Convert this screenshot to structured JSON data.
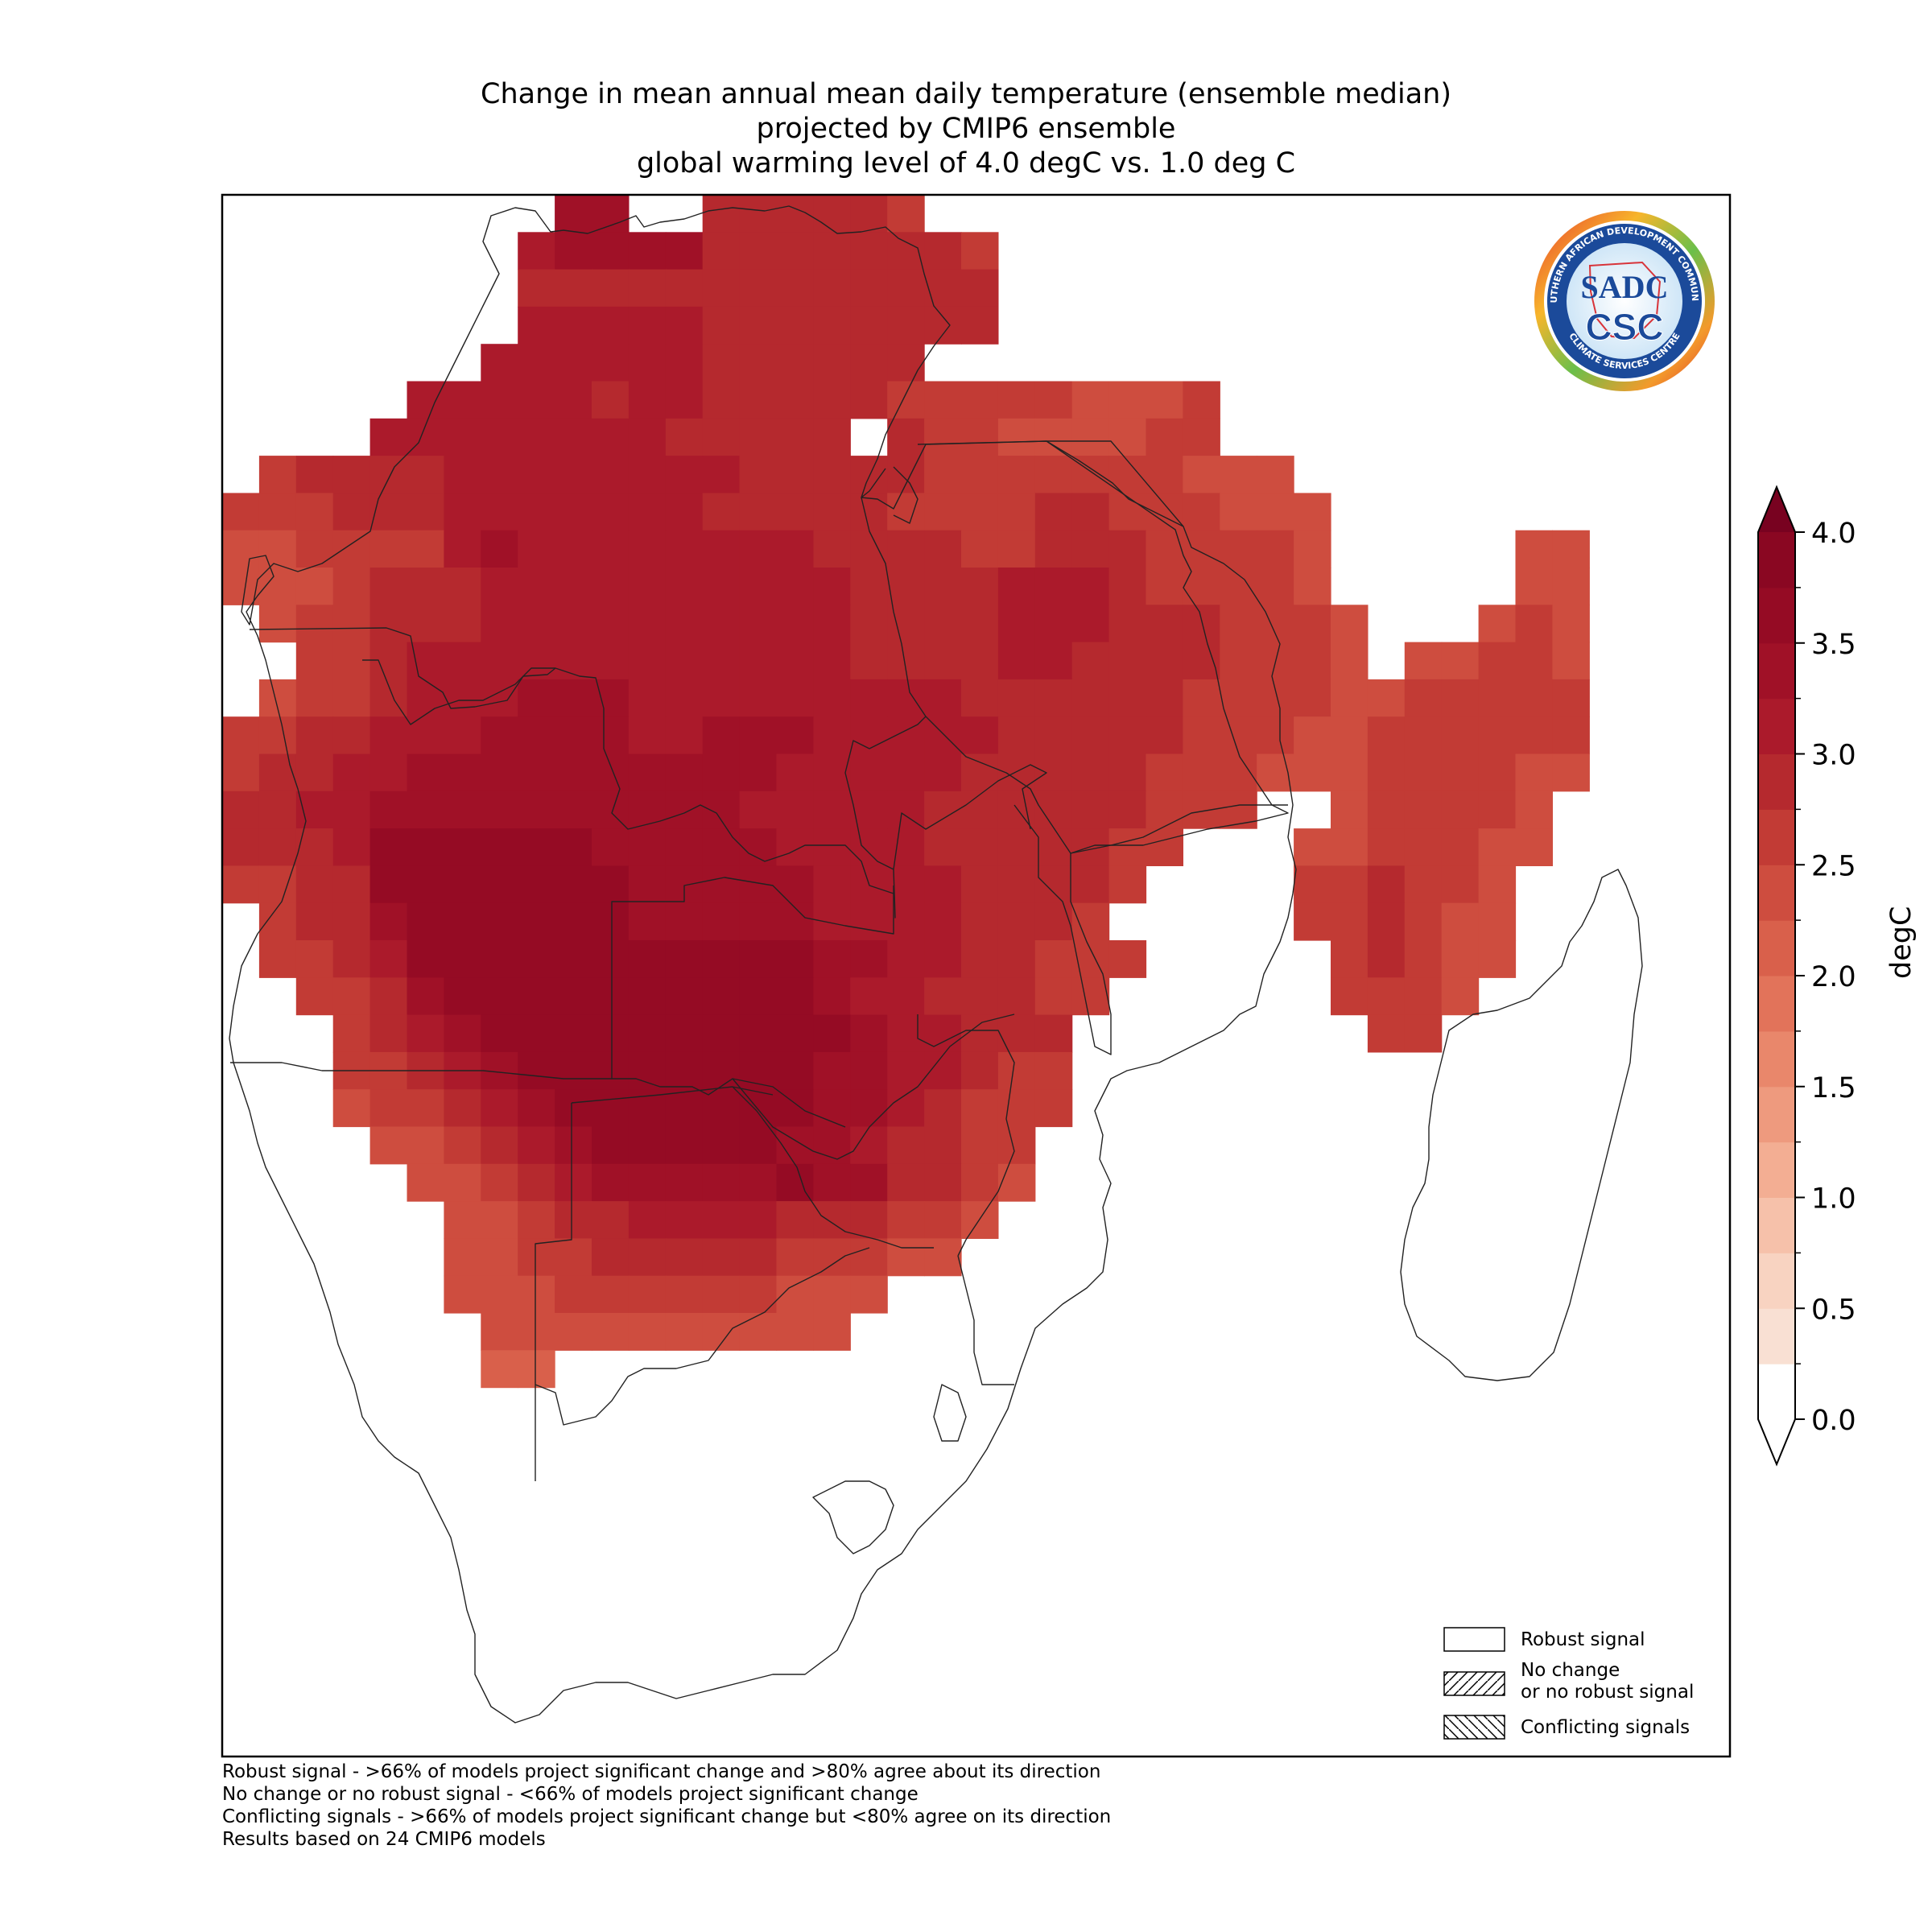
{
  "title": {
    "line1": "Change in mean annual mean daily temperature (ensemble median)",
    "line2": "projected by CMIP6 ensemble",
    "line3": "global warming level of 4.0 degC vs. 1.0 deg C"
  },
  "logo": {
    "arc_top": "SOUTHERN AFRICAN DEVELOPMENT COMMUNITY",
    "arc_bottom": "CLIMATE SERVICES CENTRE",
    "main": "SADC",
    "sub": "CSC"
  },
  "colorbar": {
    "label": "degC",
    "ticks": [
      "0.0",
      "0.5",
      "1.0",
      "1.5",
      "2.0",
      "2.5",
      "3.0",
      "3.5",
      "4.0"
    ],
    "min": 0.0,
    "max": 4.0,
    "step": 0.25,
    "colors": [
      "#faeae2",
      "#f9e0d3",
      "#f8d3c1",
      "#f6c1aa",
      "#f3ae93",
      "#ee9a7e",
      "#e9876b",
      "#e2735a",
      "#d9604b",
      "#ce4d3f",
      "#c23b35",
      "#b5292e",
      "#ab1a2b",
      "#a01127",
      "#950b24",
      "#8a0722"
    ],
    "extend": "both",
    "under_color": "#ffffff",
    "over_color": "#780220"
  },
  "legend": {
    "robust": "Robust signal",
    "nochange_1": "No change",
    "nochange_2": "or no robust signal",
    "conflicting": "Conflicting signals"
  },
  "footnotes": [
    "Robust signal - >66% of models project significant change and >80% agree about its direction",
    "No change or no robust signal - <66% of models project significant change",
    "Conflicting signals - >66% of models project significant change but <80% agree on its direction",
    "Results based on 24 CMIP6 models"
  ],
  "map": {
    "variable": "mean annual mean daily temperature change",
    "units": "degC",
    "grid_resolution_deg": 1.0,
    "note": "values per grid cell given as band index into colorbar.colors (each band = 0.25 degC)",
    "mainland_rows": [
      {
        "lat": -3.5,
        "lon_start": 23,
        "bands": [
          13,
          13,
          99,
          99,
          11,
          11,
          11,
          11,
          11,
          10
        ]
      },
      {
        "lat": -4.5,
        "lon_start": 22,
        "bands": [
          12,
          13,
          13,
          13,
          13,
          11,
          11,
          11,
          11,
          11,
          11,
          11,
          10
        ]
      },
      {
        "lat": -5.5,
        "lon_start": 22,
        "bands": [
          11,
          11,
          11,
          11,
          11,
          11,
          11,
          11,
          11,
          11,
          11,
          11,
          11
        ]
      },
      {
        "lat": -6.5,
        "lon_start": 22,
        "bands": [
          12,
          12,
          12,
          12,
          12,
          11,
          11,
          11,
          11,
          11,
          11,
          11,
          11
        ]
      },
      {
        "lat": -7.5,
        "lon_start": 21,
        "bands": [
          12,
          12,
          12,
          12,
          12,
          12,
          11,
          11,
          11,
          11,
          11,
          11
        ]
      },
      {
        "lat": -8.5,
        "lon_start": 19,
        "bands": [
          12,
          12,
          12,
          12,
          12,
          11,
          12,
          12,
          11,
          11,
          11,
          11,
          11,
          10,
          10,
          10,
          10,
          10,
          9,
          9,
          9,
          10
        ]
      },
      {
        "lat": -9.5,
        "lon_start": 18,
        "bands": [
          12,
          12,
          12,
          12,
          12,
          12,
          12,
          12,
          11,
          11,
          11,
          11,
          11,
          99,
          11,
          10,
          10,
          9,
          9,
          9,
          9,
          10,
          10
        ]
      },
      {
        "lat": -10.5,
        "lon_start": 15,
        "bands": [
          10,
          11,
          11,
          11,
          11,
          12,
          12,
          12,
          12,
          12,
          12,
          12,
          12,
          11,
          11,
          11,
          11,
          11,
          10,
          10,
          10,
          10,
          10,
          10,
          10,
          9,
          9,
          9
        ]
      },
      {
        "lat": -11.5,
        "lon_start": 14,
        "bands": [
          10,
          10,
          10,
          11,
          11,
          11,
          12,
          12,
          12,
          12,
          12,
          12,
          12,
          11,
          11,
          11,
          11,
          11,
          10,
          10,
          10,
          10,
          11,
          11,
          10,
          10,
          10,
          9,
          9,
          9
        ]
      },
      {
        "lat": -12.5,
        "lon_start": 14,
        "bands": [
          9,
          9,
          10,
          10,
          10,
          10,
          12,
          13,
          12,
          12,
          12,
          12,
          12,
          12,
          12,
          12,
          11,
          11,
          11,
          11,
          10,
          10,
          11,
          11,
          11,
          10,
          10,
          10,
          10,
          9
        ]
      },
      {
        "lat": -13.5,
        "lon_start": 14,
        "bands": [
          9,
          9,
          9,
          10,
          11,
          11,
          11,
          12,
          12,
          12,
          12,
          12,
          12,
          12,
          12,
          12,
          12,
          11,
          11,
          11,
          11,
          12,
          12,
          12,
          11,
          10,
          10,
          10,
          10,
          9
        ]
      },
      {
        "lat": -14.5,
        "lon_start": 15,
        "bands": [
          9,
          10,
          10,
          11,
          11,
          11,
          12,
          12,
          12,
          12,
          12,
          12,
          12,
          12,
          12,
          12,
          11,
          11,
          11,
          11,
          12,
          12,
          12,
          11,
          11,
          11,
          10,
          10,
          10,
          9
        ]
      },
      {
        "lat": -15.5,
        "lon_start": 16,
        "bands": [
          10,
          10,
          11,
          12,
          12,
          12,
          12,
          12,
          12,
          12,
          12,
          12,
          12,
          12,
          12,
          11,
          11,
          11,
          11,
          12,
          12,
          11,
          11,
          11,
          11,
          10,
          10,
          10,
          9
        ]
      },
      {
        "lat": -16.5,
        "lon_start": 15,
        "bands": [
          9,
          10,
          10,
          11,
          12,
          12,
          12,
          13,
          13,
          13,
          12,
          12,
          12,
          12,
          12,
          12,
          12,
          12,
          12,
          11,
          11,
          11,
          11,
          11,
          11,
          10,
          10,
          10,
          10,
          9
        ]
      },
      {
        "lat": -17.5,
        "lon_start": 14,
        "bands": [
          10,
          10,
          11,
          11,
          12,
          12,
          12,
          13,
          13,
          13,
          13,
          12,
          12,
          13,
          13,
          13,
          12,
          12,
          12,
          12,
          12,
          11,
          11,
          11,
          11,
          11,
          10,
          10,
          10,
          9
        ]
      },
      {
        "lat": -18.5,
        "lon_start": 14,
        "bands": [
          10,
          11,
          11,
          12,
          12,
          13,
          13,
          13,
          13,
          13,
          13,
          13,
          13,
          13,
          13,
          12,
          12,
          12,
          12,
          12,
          11,
          11,
          11,
          11,
          11,
          10,
          10,
          10,
          9,
          9
        ]
      },
      {
        "lat": -19.5,
        "lon_start": 14,
        "bands": [
          11,
          11,
          12,
          12,
          13,
          13,
          13,
          13,
          13,
          13,
          13,
          13,
          13,
          13,
          12,
          12,
          12,
          12,
          12,
          11,
          11,
          11,
          11,
          11,
          11,
          10,
          10,
          10
        ]
      },
      {
        "lat": -20.5,
        "lon_start": 14,
        "bands": [
          11,
          11,
          11,
          12,
          14,
          14,
          14,
          14,
          14,
          14,
          13,
          13,
          13,
          13,
          13,
          12,
          12,
          12,
          12,
          11,
          11,
          11,
          11,
          11,
          10,
          10
        ]
      },
      {
        "lat": -21.5,
        "lon_start": 14,
        "bands": [
          10,
          10,
          11,
          11,
          14,
          14,
          14,
          14,
          14,
          14,
          14,
          13,
          13,
          13,
          13,
          13,
          12,
          12,
          12,
          12,
          11,
          11,
          11,
          11,
          10
        ]
      },
      {
        "lat": -22.5,
        "lon_start": 15,
        "bands": [
          10,
          11,
          11,
          13,
          14,
          14,
          14,
          14,
          14,
          14,
          13,
          13,
          13,
          13,
          13,
          12,
          12,
          12,
          12,
          11,
          11,
          11,
          10
        ]
      },
      {
        "lat": -23.5,
        "lon_start": 15,
        "bands": [
          10,
          10,
          11,
          12,
          14,
          14,
          14,
          14,
          14,
          14,
          14,
          14,
          14,
          14,
          14,
          13,
          13,
          12,
          12,
          11,
          11,
          10,
          10,
          10
        ]
      },
      {
        "lat": -24.5,
        "lon_start": 16,
        "bands": [
          10,
          10,
          11,
          13,
          14,
          14,
          14,
          14,
          14,
          14,
          14,
          14,
          14,
          14,
          13,
          12,
          12,
          11,
          11,
          11,
          10,
          10
        ]
      },
      {
        "lat": -25.5,
        "lon_start": 17,
        "bands": [
          10,
          11,
          12,
          13,
          14,
          14,
          14,
          14,
          14,
          14,
          14,
          14,
          14,
          14,
          13,
          12,
          12,
          11,
          11,
          11
        ]
      },
      {
        "lat": -26.5,
        "lon_start": 17,
        "bands": [
          10,
          10,
          11,
          12,
          13,
          14,
          14,
          14,
          14,
          14,
          14,
          14,
          14,
          13,
          13,
          12,
          12,
          11,
          10,
          10
        ]
      },
      {
        "lat": -27.5,
        "lon_start": 17,
        "bands": [
          9,
          10,
          10,
          11,
          12,
          13,
          14,
          14,
          14,
          14,
          14,
          14,
          14,
          13,
          13,
          12,
          11,
          10,
          10,
          10
        ]
      },
      {
        "lat": -28.5,
        "lon_start": 18,
        "bands": [
          9,
          9,
          10,
          11,
          12,
          13,
          14,
          14,
          14,
          14,
          14,
          13,
          13,
          12,
          11,
          11,
          10,
          10
        ]
      },
      {
        "lat": -29.5,
        "lon_start": 19,
        "bands": [
          9,
          9,
          10,
          11,
          12,
          13,
          13,
          13,
          13,
          13,
          14,
          13,
          13,
          11,
          11,
          10,
          9
        ]
      },
      {
        "lat": -30.5,
        "lon_start": 20,
        "bands": [
          9,
          9,
          10,
          11,
          11,
          12,
          12,
          12,
          12,
          11,
          11,
          11,
          10,
          10,
          9
        ]
      },
      {
        "lat": -31.5,
        "lon_start": 20,
        "bands": [
          9,
          9,
          10,
          10,
          11,
          11,
          11,
          11,
          11,
          10,
          10,
          10,
          9,
          9
        ]
      },
      {
        "lat": -32.5,
        "lon_start": 20,
        "bands": [
          9,
          9,
          9,
          10,
          10,
          10,
          10,
          10,
          10,
          9,
          9,
          9
        ]
      },
      {
        "lat": -33.5,
        "lon_start": 21,
        "bands": [
          9,
          9,
          9,
          9,
          9,
          9,
          9,
          9,
          9,
          9
        ]
      },
      {
        "lat": -34.5,
        "lon_start": 21,
        "bands": [
          8,
          8
        ]
      }
    ],
    "madagascar_rows": [
      {
        "lat": -12.5,
        "lon_start": 49,
        "bands": [
          9,
          9
        ]
      },
      {
        "lat": -13.5,
        "lon_start": 49,
        "bands": [
          9,
          9
        ]
      },
      {
        "lat": -14.5,
        "lon_start": 48,
        "bands": [
          9,
          10,
          9
        ]
      },
      {
        "lat": -15.5,
        "lon_start": 46,
        "bands": [
          9,
          9,
          10,
          10,
          9
        ]
      },
      {
        "lat": -16.5,
        "lon_start": 44,
        "bands": [
          9,
          9,
          10,
          10,
          10,
          10,
          10
        ]
      },
      {
        "lat": -17.5,
        "lon_start": 44,
        "bands": [
          9,
          10,
          10,
          10,
          10,
          10,
          10
        ]
      },
      {
        "lat": -18.5,
        "lon_start": 44,
        "bands": [
          9,
          10,
          10,
          10,
          10,
          9,
          9
        ]
      },
      {
        "lat": -19.5,
        "lon_start": 44,
        "bands": [
          9,
          10,
          10,
          10,
          10,
          9
        ]
      },
      {
        "lat": -20.5,
        "lon_start": 43,
        "bands": [
          9,
          9,
          10,
          10,
          10,
          9,
          9
        ]
      },
      {
        "lat": -21.5,
        "lon_start": 43,
        "bands": [
          10,
          10,
          11,
          10,
          10,
          9
        ]
      },
      {
        "lat": -22.5,
        "lon_start": 43,
        "bands": [
          10,
          10,
          11,
          10,
          9,
          9
        ]
      },
      {
        "lat": -23.5,
        "lon_start": 44,
        "bands": [
          10,
          11,
          10,
          9,
          9
        ]
      },
      {
        "lat": -24.5,
        "lon_start": 44,
        "bands": [
          10,
          10,
          10,
          9
        ]
      },
      {
        "lat": -25.5,
        "lon_start": 45,
        "bands": [
          10,
          10
        ]
      }
    ]
  }
}
